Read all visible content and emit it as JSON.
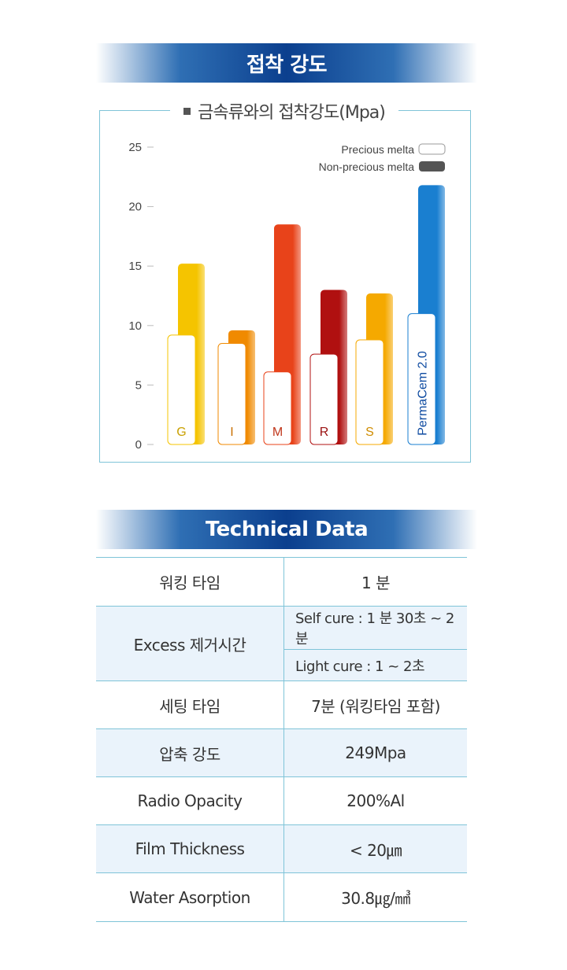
{
  "section1": {
    "title": "접착 강도"
  },
  "chart_data": {
    "type": "bar",
    "title": "금속류와의 접착강도(Mpa)",
    "categories": [
      "G",
      "I",
      "M",
      "R",
      "S",
      "PermaCem 2.0"
    ],
    "series": [
      {
        "name": "Precious melta",
        "values": [
          9.2,
          8.5,
          6.1,
          7.6,
          8.8,
          11.0
        ],
        "color": "#ffffff"
      },
      {
        "name": "Non-precious melta",
        "values": [
          15.2,
          9.6,
          18.5,
          13.0,
          12.7,
          21.8
        ],
        "color": "#555555"
      }
    ],
    "bar_colors": [
      "#f5c400",
      "#f08a00",
      "#e8431a",
      "#b01010",
      "#f5a900",
      "#1a7fd0"
    ],
    "label_colors": [
      "#c9a000",
      "#c87000",
      "#c0361a",
      "#9a1010",
      "#cf8c00",
      "#0d4aa0"
    ],
    "yticks": [
      0,
      5,
      10,
      15,
      20,
      25
    ],
    "ylim": [
      0,
      25
    ],
    "grid": false,
    "legend": "top-right"
  },
  "section2": {
    "title": "Technical Data"
  },
  "table": {
    "rows": [
      {
        "label": "워킹 타임",
        "value": "1 분"
      },
      {
        "label": "Excess 제거시간",
        "sub": [
          "Self cure : 1 분 30초 ~ 2분",
          "Light cure : 1 ~ 2초"
        ]
      },
      {
        "label": "세팅 타임",
        "value": "7분 (워킹타임 포함)"
      },
      {
        "label": "압축 강도",
        "value": "249Mpa"
      },
      {
        "label": "Radio Opacity",
        "value": "200%Al"
      },
      {
        "label": "Film Thickness",
        "value": "< 20㎛"
      },
      {
        "label": "Water Asorption",
        "value": "30.8㎍/㎣"
      }
    ]
  }
}
